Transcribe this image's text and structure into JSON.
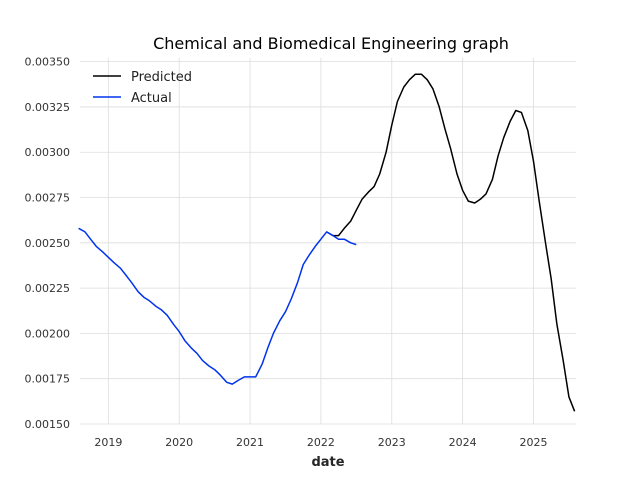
{
  "chart_data": {
    "type": "line",
    "title": "Chemical and Biomedical Engineering graph",
    "xlabel": "date",
    "ylabel": "",
    "x_range": [
      2018.6,
      2025.6
    ],
    "ylim": [
      0.0015,
      0.00352
    ],
    "x_ticks": [
      {
        "value": 2019,
        "label": "2019"
      },
      {
        "value": 2020,
        "label": "2020"
      },
      {
        "value": 2021,
        "label": "2021"
      },
      {
        "value": 2022,
        "label": "2022"
      },
      {
        "value": 2023,
        "label": "2023"
      },
      {
        "value": 2024,
        "label": "2024"
      },
      {
        "value": 2025,
        "label": "2025"
      }
    ],
    "y_ticks": [
      {
        "value": 0.0015,
        "label": "0.00150"
      },
      {
        "value": 0.00175,
        "label": "0.00175"
      },
      {
        "value": 0.002,
        "label": "0.00200"
      },
      {
        "value": 0.00225,
        "label": "0.00225"
      },
      {
        "value": 0.0025,
        "label": "0.00250"
      },
      {
        "value": 0.00275,
        "label": "0.00275"
      },
      {
        "value": 0.003,
        "label": "0.00300"
      },
      {
        "value": 0.00325,
        "label": "0.00325"
      },
      {
        "value": 0.0035,
        "label": "0.00350"
      }
    ],
    "grid": true,
    "legend_position": "top-left",
    "series": [
      {
        "name": "Predicted",
        "color": "#000000",
        "x": [
          2022.08,
          2022.17,
          2022.25,
          2022.33,
          2022.42,
          2022.5,
          2022.58,
          2022.67,
          2022.75,
          2022.83,
          2022.92,
          2023.0,
          2023.08,
          2023.17,
          2023.25,
          2023.33,
          2023.42,
          2023.5,
          2023.58,
          2023.67,
          2023.75,
          2023.83,
          2023.92,
          2024.0,
          2024.08,
          2024.17,
          2024.25,
          2024.33,
          2024.42,
          2024.5,
          2024.58,
          2024.67,
          2024.75,
          2024.83,
          2024.92,
          2025.0,
          2025.08,
          2025.17,
          2025.25,
          2025.33,
          2025.42,
          2025.5,
          2025.58
        ],
        "y": [
          0.00256,
          0.00254,
          0.00254,
          0.00258,
          0.00262,
          0.00268,
          0.00274,
          0.00278,
          0.00281,
          0.00288,
          0.003,
          0.00315,
          0.00328,
          0.00336,
          0.0034,
          0.00343,
          0.00343,
          0.0034,
          0.00335,
          0.00325,
          0.00313,
          0.00302,
          0.00288,
          0.00279,
          0.00273,
          0.00272,
          0.00274,
          0.00277,
          0.00285,
          0.00298,
          0.00308,
          0.00317,
          0.00323,
          0.00322,
          0.00312,
          0.00295,
          0.00273,
          0.0025,
          0.0023,
          0.00205,
          0.00185,
          0.00165,
          0.00157
        ]
      },
      {
        "name": "Actual",
        "color": "#0033ee",
        "x": [
          2018.58,
          2018.67,
          2018.75,
          2018.83,
          2018.92,
          2019.0,
          2019.08,
          2019.17,
          2019.25,
          2019.33,
          2019.42,
          2019.5,
          2019.58,
          2019.67,
          2019.75,
          2019.83,
          2019.92,
          2020.0,
          2020.08,
          2020.17,
          2020.25,
          2020.33,
          2020.42,
          2020.5,
          2020.58,
          2020.67,
          2020.75,
          2020.83,
          2020.92,
          2021.0,
          2021.08,
          2021.17,
          2021.25,
          2021.33,
          2021.42,
          2021.5,
          2021.58,
          2021.67,
          2021.75,
          2021.83,
          2021.92,
          2022.0,
          2022.08,
          2022.17,
          2022.25,
          2022.33,
          2022.42,
          2022.5
        ],
        "y": [
          0.00258,
          0.00256,
          0.00252,
          0.00248,
          0.00245,
          0.00242,
          0.00239,
          0.00236,
          0.00232,
          0.00228,
          0.00223,
          0.0022,
          0.00218,
          0.00215,
          0.00213,
          0.0021,
          0.00205,
          0.00201,
          0.00196,
          0.00192,
          0.00189,
          0.00185,
          0.00182,
          0.0018,
          0.00177,
          0.00173,
          0.00172,
          0.00174,
          0.00176,
          0.00176,
          0.00176,
          0.00183,
          0.00192,
          0.002,
          0.00207,
          0.00212,
          0.00219,
          0.00228,
          0.00238,
          0.00243,
          0.00248,
          0.00252,
          0.00256,
          0.00254,
          0.00252,
          0.00252,
          0.0025,
          0.00249
        ]
      }
    ]
  }
}
